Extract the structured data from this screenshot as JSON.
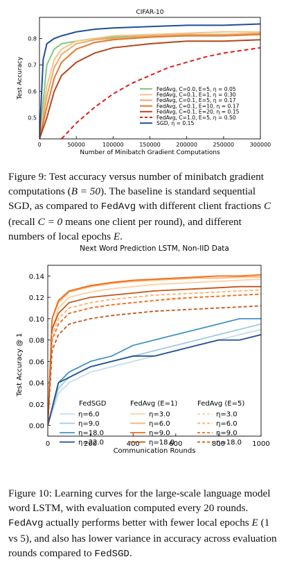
{
  "figure9": {
    "caption": {
      "label": "Figure 9:",
      "text1": " Test accuracy versus number of minibatch gradient computations (",
      "b_eq": "B = 50",
      "text2": "). The baseline is standard sequential SGD, as compared to ",
      "code": "FedAvg",
      "text3": " with different client fractions ",
      "c": "C",
      "text4": " (recall ",
      "c0": "C = 0",
      "text5": " means one client per round), and different numbers of local epochs ",
      "e": "E",
      "text6": "."
    },
    "chart_data": {
      "type": "line",
      "title": "CIFAR-10",
      "xlabel": "Number of Minibatch Gradient Computations",
      "ylabel": "Test Accuracy",
      "xlim": [
        0,
        300000
      ],
      "ylim": [
        0.42,
        0.88
      ],
      "xticks": [
        "0",
        "50000",
        "100000",
        "150000",
        "200000",
        "250000",
        "300000"
      ],
      "yticks": [
        "0.5",
        "0.6",
        "0.7",
        "0.8"
      ],
      "legend_position": "lower-right",
      "series": [
        {
          "name": "FedAvg, C=0.0, E=5, η = 0.05",
          "color": "#7fc97f",
          "dash": "solid",
          "x": [
            0,
            10000,
            20000,
            30000,
            50000,
            75000,
            100000,
            150000,
            200000,
            250000,
            300000
          ],
          "y": [
            0.42,
            0.7,
            0.76,
            0.78,
            0.79,
            0.8,
            0.805,
            0.81,
            0.815,
            0.815,
            0.82
          ]
        },
        {
          "name": "FedAvg, C=0.1, E=1, η = 0.30",
          "color": "#f2c58b",
          "dash": "solid",
          "x": [
            0,
            10000,
            20000,
            30000,
            50000,
            75000,
            100000,
            150000,
            200000,
            250000,
            300000
          ],
          "y": [
            0.42,
            0.62,
            0.72,
            0.76,
            0.79,
            0.8,
            0.81,
            0.815,
            0.82,
            0.825,
            0.825
          ]
        },
        {
          "name": "FedAvg, C=0.1, E=5, η = 0.17",
          "color": "#f0a868",
          "dash": "solid",
          "x": [
            0,
            10000,
            20000,
            30000,
            50000,
            75000,
            100000,
            150000,
            200000,
            250000,
            300000
          ],
          "y": [
            0.42,
            0.58,
            0.69,
            0.74,
            0.78,
            0.795,
            0.8,
            0.81,
            0.815,
            0.815,
            0.82
          ]
        },
        {
          "name": "FedAvg, C=0.1, E=10, η = 0.17",
          "color": "#e07a2e",
          "dash": "solid",
          "x": [
            0,
            10000,
            20000,
            30000,
            50000,
            75000,
            100000,
            150000,
            200000,
            250000,
            300000
          ],
          "y": [
            0.42,
            0.54,
            0.65,
            0.71,
            0.76,
            0.785,
            0.795,
            0.805,
            0.81,
            0.81,
            0.815
          ]
        },
        {
          "name": "FedAvg, C=0.1, E=20, η = 0.15",
          "color": "#b5451b",
          "dash": "solid",
          "x": [
            0,
            10000,
            20000,
            30000,
            50000,
            75000,
            100000,
            150000,
            200000,
            250000,
            300000
          ],
          "y": [
            0.42,
            0.5,
            0.6,
            0.66,
            0.71,
            0.745,
            0.765,
            0.78,
            0.79,
            0.79,
            0.795
          ]
        },
        {
          "name": "FedAvg, C=1.0, E=5, η = 0.50",
          "color": "#e41a1c",
          "dash": "dashed",
          "x": [
            30000,
            50000,
            75000,
            100000,
            125000,
            150000,
            175000,
            200000,
            225000,
            250000,
            275000,
            300000
          ],
          "y": [
            0.42,
            0.48,
            0.54,
            0.59,
            0.63,
            0.66,
            0.69,
            0.71,
            0.73,
            0.745,
            0.755,
            0.765
          ]
        },
        {
          "name": "SGD, η = 0.15",
          "color": "#1f4e96",
          "dash": "solid",
          "x": [
            0,
            5000,
            10000,
            20000,
            30000,
            50000,
            75000,
            100000,
            150000,
            200000,
            250000,
            300000
          ],
          "y": [
            0.42,
            0.72,
            0.78,
            0.8,
            0.81,
            0.825,
            0.835,
            0.84,
            0.845,
            0.85,
            0.85,
            0.855
          ]
        }
      ]
    }
  },
  "figure10": {
    "caption": {
      "label": "Figure 10:",
      "text1": " Learning curves for the large-scale language model word LSTM, with evaluation computed every 20 rounds. ",
      "code1": "FedAvg",
      "text2": " actually performs better with fewer local epochs ",
      "e": "E",
      "text3": " (1 vs 5), and also has lower variance in accuracy across evaluation rounds compared to ",
      "code2": "FedSGD",
      "text4": "."
    },
    "chart_data": {
      "type": "line",
      "title": "Next Word Prediction LSTM, Non-IID Data",
      "xlabel": "Communication Rounds",
      "ylabel": "Test Accuracy @ 1",
      "xlim": [
        0,
        1000
      ],
      "ylim": [
        -0.01,
        0.15
      ],
      "xticks": [
        "0",
        "200",
        "400",
        "600",
        "800",
        "1000"
      ],
      "yticks": [
        "0.00",
        "0.02",
        "0.04",
        "0.06",
        "0.08",
        "0.10",
        "0.12",
        "0.14"
      ],
      "legend_groups": [
        "FedSGD",
        "FedAvg (E=1)",
        "FedAvg (E=5)"
      ],
      "legend_position": "lower",
      "series": [
        {
          "group": "FedSGD",
          "name": "η=6.0",
          "color": "#c6dbef",
          "dash": "solid",
          "x": [
            0,
            50,
            100,
            200,
            300,
            400,
            500,
            600,
            700,
            800,
            900,
            1000
          ],
          "y": [
            0.0,
            0.03,
            0.04,
            0.05,
            0.055,
            0.06,
            0.065,
            0.07,
            0.075,
            0.08,
            0.085,
            0.09
          ]
        },
        {
          "group": "FedSGD",
          "name": "η=9.0",
          "color": "#9ecae1",
          "dash": "solid",
          "x": [
            0,
            50,
            100,
            200,
            300,
            400,
            500,
            600,
            700,
            800,
            900,
            1000
          ],
          "y": [
            0.0,
            0.035,
            0.045,
            0.055,
            0.06,
            0.065,
            0.07,
            0.075,
            0.08,
            0.085,
            0.09,
            0.095
          ]
        },
        {
          "group": "FedSGD",
          "name": "η=18.0",
          "color": "#4292c6",
          "dash": "solid",
          "x": [
            0,
            50,
            100,
            200,
            300,
            400,
            500,
            600,
            700,
            800,
            900,
            1000
          ],
          "y": [
            0.0,
            0.04,
            0.05,
            0.06,
            0.065,
            0.075,
            0.08,
            0.085,
            0.09,
            0.095,
            0.1,
            0.1
          ]
        },
        {
          "group": "FedSGD",
          "name": "η=22.0",
          "color": "#1f4e96",
          "dash": "solid",
          "x": [
            0,
            50,
            100,
            200,
            300,
            400,
            500,
            600,
            700,
            800,
            900,
            1000
          ],
          "y": [
            0.0,
            0.04,
            0.045,
            0.055,
            0.06,
            0.065,
            0.065,
            0.07,
            0.075,
            0.08,
            0.08,
            0.085
          ]
        },
        {
          "group": "FedAvg (E=1)",
          "name": "η=3.0",
          "color": "#fdd0a2",
          "dash": "solid",
          "x": [
            0,
            20,
            50,
            100,
            200,
            300,
            400,
            500,
            600,
            700,
            800,
            900,
            1000
          ],
          "y": [
            0.0,
            0.09,
            0.11,
            0.12,
            0.125,
            0.128,
            0.13,
            0.132,
            0.133,
            0.134,
            0.135,
            0.136,
            0.137
          ]
        },
        {
          "group": "FedAvg (E=1)",
          "name": "η=6.0",
          "color": "#fdae6b",
          "dash": "solid",
          "x": [
            0,
            20,
            50,
            100,
            200,
            300,
            400,
            500,
            600,
            700,
            800,
            900,
            1000
          ],
          "y": [
            0.0,
            0.1,
            0.115,
            0.125,
            0.13,
            0.133,
            0.135,
            0.136,
            0.137,
            0.138,
            0.138,
            0.139,
            0.139
          ]
        },
        {
          "group": "FedAvg (E=1)",
          "name": "η=9.0",
          "color": "#f16913",
          "dash": "solid",
          "x": [
            0,
            20,
            50,
            100,
            200,
            300,
            400,
            500,
            600,
            700,
            800,
            900,
            1000
          ],
          "y": [
            0.0,
            0.1,
            0.117,
            0.126,
            0.131,
            0.134,
            0.136,
            0.137,
            0.138,
            0.139,
            0.14,
            0.14,
            0.141
          ]
        },
        {
          "group": "FedAvg (E=1)",
          "name": "η=18.0",
          "color": "#c2561a",
          "dash": "solid",
          "x": [
            0,
            20,
            50,
            100,
            200,
            300,
            400,
            500,
            600,
            700,
            800,
            900,
            1000
          ],
          "y": [
            0.0,
            0.09,
            0.105,
            0.115,
            0.12,
            0.122,
            0.124,
            0.126,
            0.127,
            0.128,
            0.129,
            0.13,
            0.13
          ]
        },
        {
          "group": "FedAvg (E=5)",
          "name": "η=3.0",
          "color": "#fdd0a2",
          "dash": "dashed",
          "x": [
            0,
            20,
            50,
            100,
            200,
            300,
            400,
            500,
            600,
            700,
            800,
            900,
            1000
          ],
          "y": [
            0.0,
            0.08,
            0.095,
            0.105,
            0.11,
            0.113,
            0.115,
            0.117,
            0.118,
            0.12,
            0.121,
            0.122,
            0.123
          ]
        },
        {
          "group": "FedAvg (E=5)",
          "name": "η=6.0",
          "color": "#fdae6b",
          "dash": "dashed",
          "x": [
            0,
            20,
            50,
            100,
            200,
            300,
            400,
            500,
            600,
            700,
            800,
            900,
            1000
          ],
          "y": [
            0.0,
            0.085,
            0.1,
            0.11,
            0.115,
            0.118,
            0.12,
            0.122,
            0.123,
            0.124,
            0.125,
            0.126,
            0.127
          ]
        },
        {
          "group": "FedAvg (E=5)",
          "name": "η=9.0",
          "color": "#f16913",
          "dash": "dashed",
          "x": [
            0,
            20,
            50,
            100,
            200,
            300,
            400,
            500,
            600,
            700,
            800,
            900,
            1000
          ],
          "y": [
            0.0,
            0.08,
            0.095,
            0.105,
            0.11,
            0.113,
            0.115,
            0.117,
            0.119,
            0.12,
            0.121,
            0.122,
            0.123
          ]
        },
        {
          "group": "FedAvg (E=5)",
          "name": "η=18.0",
          "color": "#c2561a",
          "dash": "dashed",
          "x": [
            0,
            20,
            50,
            100,
            200,
            300,
            400,
            500,
            600,
            700,
            800,
            900,
            1000
          ],
          "y": [
            0.0,
            0.07,
            0.085,
            0.095,
            0.1,
            0.103,
            0.105,
            0.107,
            0.108,
            0.109,
            0.11,
            0.111,
            0.112
          ]
        }
      ]
    }
  }
}
